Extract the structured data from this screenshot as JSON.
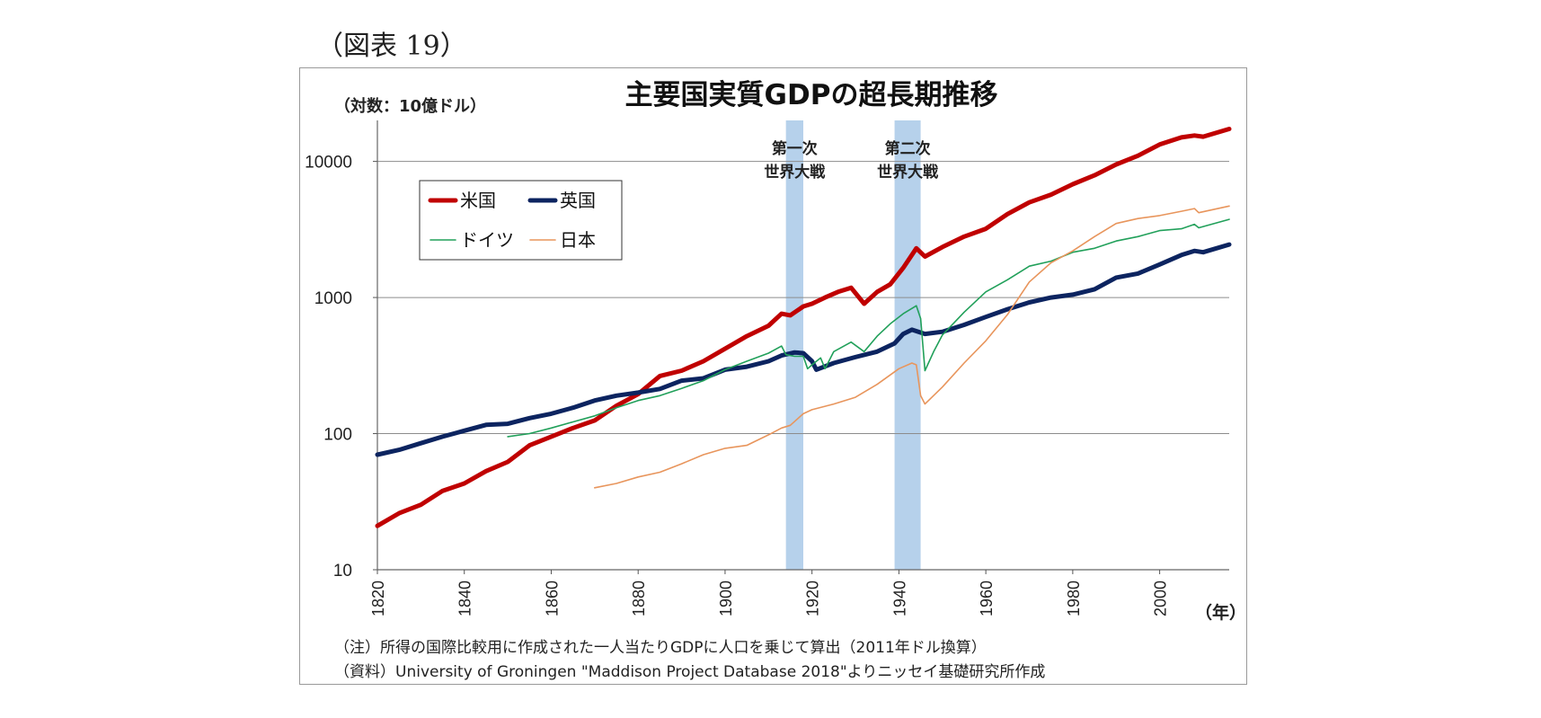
{
  "figure_label": "（図表 19）",
  "chart_data": {
    "type": "line",
    "title": "主要国実質GDPの超長期推移",
    "ylabel": "（対数：10億ドル）",
    "xlabel": "（年）",
    "yscale": "log",
    "ylim": [
      10,
      20000
    ],
    "xlim": [
      1820,
      2016
    ],
    "yticks": [
      10,
      100,
      1000,
      10000
    ],
    "ytick_labels": [
      "10",
      "100",
      "1000",
      "10000"
    ],
    "xticks": [
      1820,
      1840,
      1860,
      1880,
      1900,
      1920,
      1940,
      1960,
      1980,
      2000
    ],
    "xtick_labels": [
      "1820",
      "1840",
      "1860",
      "1880",
      "1900",
      "1920",
      "1940",
      "1960",
      "1980",
      "2000"
    ],
    "grid": true,
    "legend_position": "top-left",
    "shaded_periods": [
      {
        "label_line1": "第一次",
        "label_line2": "世界大戦",
        "start": 1914,
        "end": 1918
      },
      {
        "label_line1": "第二次",
        "label_line2": "世界大戦",
        "start": 1939,
        "end": 1945
      }
    ],
    "series": [
      {
        "name": "米国",
        "color": "#c00000",
        "thick": true,
        "points": [
          [
            1820,
            21
          ],
          [
            1825,
            26
          ],
          [
            1830,
            30
          ],
          [
            1835,
            38
          ],
          [
            1840,
            43
          ],
          [
            1845,
            53
          ],
          [
            1850,
            62
          ],
          [
            1855,
            82
          ],
          [
            1860,
            95
          ],
          [
            1865,
            110
          ],
          [
            1870,
            125
          ],
          [
            1875,
            160
          ],
          [
            1880,
            195
          ],
          [
            1885,
            265
          ],
          [
            1890,
            290
          ],
          [
            1895,
            340
          ],
          [
            1900,
            420
          ],
          [
            1905,
            520
          ],
          [
            1910,
            620
          ],
          [
            1913,
            760
          ],
          [
            1915,
            740
          ],
          [
            1918,
            860
          ],
          [
            1920,
            900
          ],
          [
            1923,
            1000
          ],
          [
            1926,
            1100
          ],
          [
            1929,
            1180
          ],
          [
            1932,
            900
          ],
          [
            1935,
            1100
          ],
          [
            1938,
            1250
          ],
          [
            1941,
            1650
          ],
          [
            1944,
            2300
          ],
          [
            1946,
            2000
          ],
          [
            1950,
            2350
          ],
          [
            1955,
            2800
          ],
          [
            1960,
            3200
          ],
          [
            1965,
            4100
          ],
          [
            1970,
            5000
          ],
          [
            1975,
            5700
          ],
          [
            1980,
            6800
          ],
          [
            1985,
            7900
          ],
          [
            1990,
            9500
          ],
          [
            1995,
            11000
          ],
          [
            2000,
            13300
          ],
          [
            2005,
            15000
          ],
          [
            2008,
            15500
          ],
          [
            2010,
            15200
          ],
          [
            2016,
            17300
          ]
        ]
      },
      {
        "name": "英国",
        "color": "#0c2460",
        "thick": true,
        "points": [
          [
            1820,
            70
          ],
          [
            1825,
            76
          ],
          [
            1830,
            85
          ],
          [
            1835,
            95
          ],
          [
            1840,
            105
          ],
          [
            1845,
            116
          ],
          [
            1850,
            118
          ],
          [
            1855,
            130
          ],
          [
            1860,
            140
          ],
          [
            1865,
            155
          ],
          [
            1870,
            175
          ],
          [
            1875,
            190
          ],
          [
            1880,
            200
          ],
          [
            1885,
            213
          ],
          [
            1890,
            245
          ],
          [
            1895,
            255
          ],
          [
            1900,
            295
          ],
          [
            1905,
            310
          ],
          [
            1910,
            340
          ],
          [
            1913,
            375
          ],
          [
            1916,
            395
          ],
          [
            1918,
            390
          ],
          [
            1920,
            340
          ],
          [
            1921,
            295
          ],
          [
            1925,
            330
          ],
          [
            1930,
            365
          ],
          [
            1935,
            400
          ],
          [
            1939,
            460
          ],
          [
            1941,
            540
          ],
          [
            1943,
            580
          ],
          [
            1946,
            540
          ],
          [
            1950,
            560
          ],
          [
            1955,
            630
          ],
          [
            1960,
            720
          ],
          [
            1965,
            820
          ],
          [
            1970,
            920
          ],
          [
            1975,
            1000
          ],
          [
            1980,
            1050
          ],
          [
            1985,
            1150
          ],
          [
            1990,
            1400
          ],
          [
            1995,
            1500
          ],
          [
            2000,
            1750
          ],
          [
            2005,
            2050
          ],
          [
            2008,
            2200
          ],
          [
            2010,
            2150
          ],
          [
            2016,
            2450
          ]
        ]
      },
      {
        "name": "ドイツ",
        "color": "#21a05a",
        "thick": false,
        "points": [
          [
            1850,
            95
          ],
          [
            1855,
            100
          ],
          [
            1860,
            110
          ],
          [
            1865,
            122
          ],
          [
            1870,
            135
          ],
          [
            1875,
            155
          ],
          [
            1880,
            175
          ],
          [
            1885,
            190
          ],
          [
            1890,
            215
          ],
          [
            1895,
            245
          ],
          [
            1900,
            295
          ],
          [
            1905,
            340
          ],
          [
            1910,
            390
          ],
          [
            1913,
            440
          ],
          [
            1914,
            380
          ],
          [
            1916,
            370
          ],
          [
            1918,
            370
          ],
          [
            1919,
            300
          ],
          [
            1920,
            320
          ],
          [
            1922,
            360
          ],
          [
            1923,
            300
          ],
          [
            1925,
            400
          ],
          [
            1929,
            470
          ],
          [
            1932,
            400
          ],
          [
            1935,
            520
          ],
          [
            1938,
            640
          ],
          [
            1941,
            760
          ],
          [
            1944,
            870
          ],
          [
            1945,
            700
          ],
          [
            1946,
            290
          ],
          [
            1948,
            400
          ],
          [
            1950,
            530
          ],
          [
            1955,
            780
          ],
          [
            1960,
            1100
          ],
          [
            1965,
            1350
          ],
          [
            1970,
            1700
          ],
          [
            1975,
            1850
          ],
          [
            1980,
            2150
          ],
          [
            1985,
            2300
          ],
          [
            1990,
            2600
          ],
          [
            1995,
            2800
          ],
          [
            2000,
            3100
          ],
          [
            2005,
            3200
          ],
          [
            2008,
            3450
          ],
          [
            2009,
            3250
          ],
          [
            2016,
            3750
          ]
        ]
      },
      {
        "name": "日本",
        "color": "#e8955c",
        "thick": false,
        "points": [
          [
            1870,
            40
          ],
          [
            1875,
            43
          ],
          [
            1880,
            48
          ],
          [
            1885,
            52
          ],
          [
            1890,
            60
          ],
          [
            1895,
            70
          ],
          [
            1900,
            78
          ],
          [
            1905,
            82
          ],
          [
            1910,
            98
          ],
          [
            1913,
            110
          ],
          [
            1915,
            115
          ],
          [
            1918,
            140
          ],
          [
            1920,
            150
          ],
          [
            1925,
            165
          ],
          [
            1930,
            185
          ],
          [
            1935,
            230
          ],
          [
            1940,
            300
          ],
          [
            1943,
            330
          ],
          [
            1944,
            320
          ],
          [
            1945,
            190
          ],
          [
            1946,
            165
          ],
          [
            1950,
            220
          ],
          [
            1955,
            330
          ],
          [
            1960,
            480
          ],
          [
            1965,
            750
          ],
          [
            1970,
            1300
          ],
          [
            1975,
            1800
          ],
          [
            1980,
            2200
          ],
          [
            1985,
            2800
          ],
          [
            1990,
            3500
          ],
          [
            1995,
            3800
          ],
          [
            2000,
            4000
          ],
          [
            2005,
            4300
          ],
          [
            2008,
            4500
          ],
          [
            2009,
            4200
          ],
          [
            2016,
            4700
          ]
        ]
      }
    ],
    "notes": [
      "（注）所得の国際比較用に作成された一人当たりGDPに人口を乗じて算出（2011年ドル換算）",
      "（資料）University of Groningen \"Maddison Project Database 2018\"よりニッセイ基礎研究所作成"
    ]
  }
}
